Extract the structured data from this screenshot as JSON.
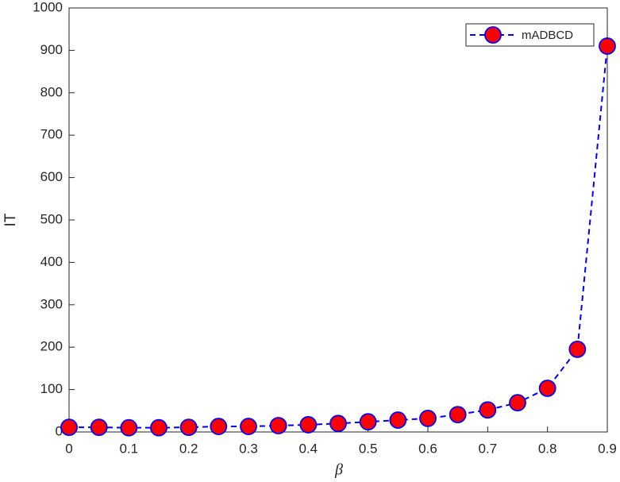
{
  "chart_data": {
    "type": "line",
    "x": [
      0,
      0.05,
      0.1,
      0.15,
      0.2,
      0.25,
      0.3,
      0.35,
      0.4,
      0.45,
      0.5,
      0.55,
      0.6,
      0.65,
      0.7,
      0.75,
      0.8,
      0.85,
      0.9
    ],
    "series": [
      {
        "name": "mADBCD",
        "color": "#0000ff",
        "marker_color": "#ff0000",
        "values": [
          11,
          11,
          10,
          10,
          11,
          13,
          13,
          15,
          17,
          20,
          24,
          28,
          32,
          41,
          52,
          69,
          103,
          195,
          910
        ]
      }
    ],
    "xlabel": "β",
    "ylabel": "IT",
    "xlim": [
      0,
      0.9
    ],
    "xticks": [
      0,
      0.1,
      0.2,
      0.3,
      0.4,
      0.5,
      0.6,
      0.7,
      0.8,
      0.9
    ],
    "ylim": [
      0,
      1000
    ],
    "yticks": [
      0,
      100,
      200,
      300,
      400,
      500,
      600,
      700,
      800,
      900,
      1000
    ],
    "legend": "upper right"
  }
}
